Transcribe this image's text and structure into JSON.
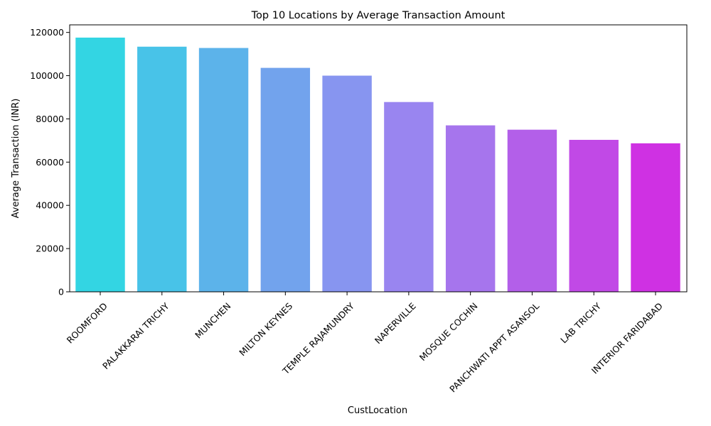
{
  "chart_data": {
    "type": "bar",
    "title": "Top 10 Locations by Average Transaction Amount",
    "xlabel": "CustLocation",
    "ylabel": "Average Transaction (INR)",
    "ylim": [
      0,
      123500
    ],
    "yticks": [
      0,
      20000,
      40000,
      60000,
      80000,
      100000,
      120000
    ],
    "grid": false,
    "legend": "none",
    "categories": [
      "ROOMFORD",
      "PALAKKARAI TRICHY",
      "MUNCHEN",
      "MILTON KEYNES",
      "TEMPLE RAJAMUNDRY",
      "NAPERVILLE",
      "MOSQUE COCHIN",
      "PANCHWATI APPT ASANSOL",
      "LAB TRICHY",
      "INTERIOR FARIDABAD"
    ],
    "values": [
      117600,
      113400,
      112800,
      103600,
      100000,
      87800,
      77000,
      75000,
      70300,
      68700
    ],
    "colors": [
      "#33d5e3",
      "#48c3e8",
      "#5cb3ea",
      "#72a3ed",
      "#8795f0",
      "#9985f0",
      "#a675ed",
      "#b35fe9",
      "#c149e6",
      "#cf31e3"
    ]
  }
}
